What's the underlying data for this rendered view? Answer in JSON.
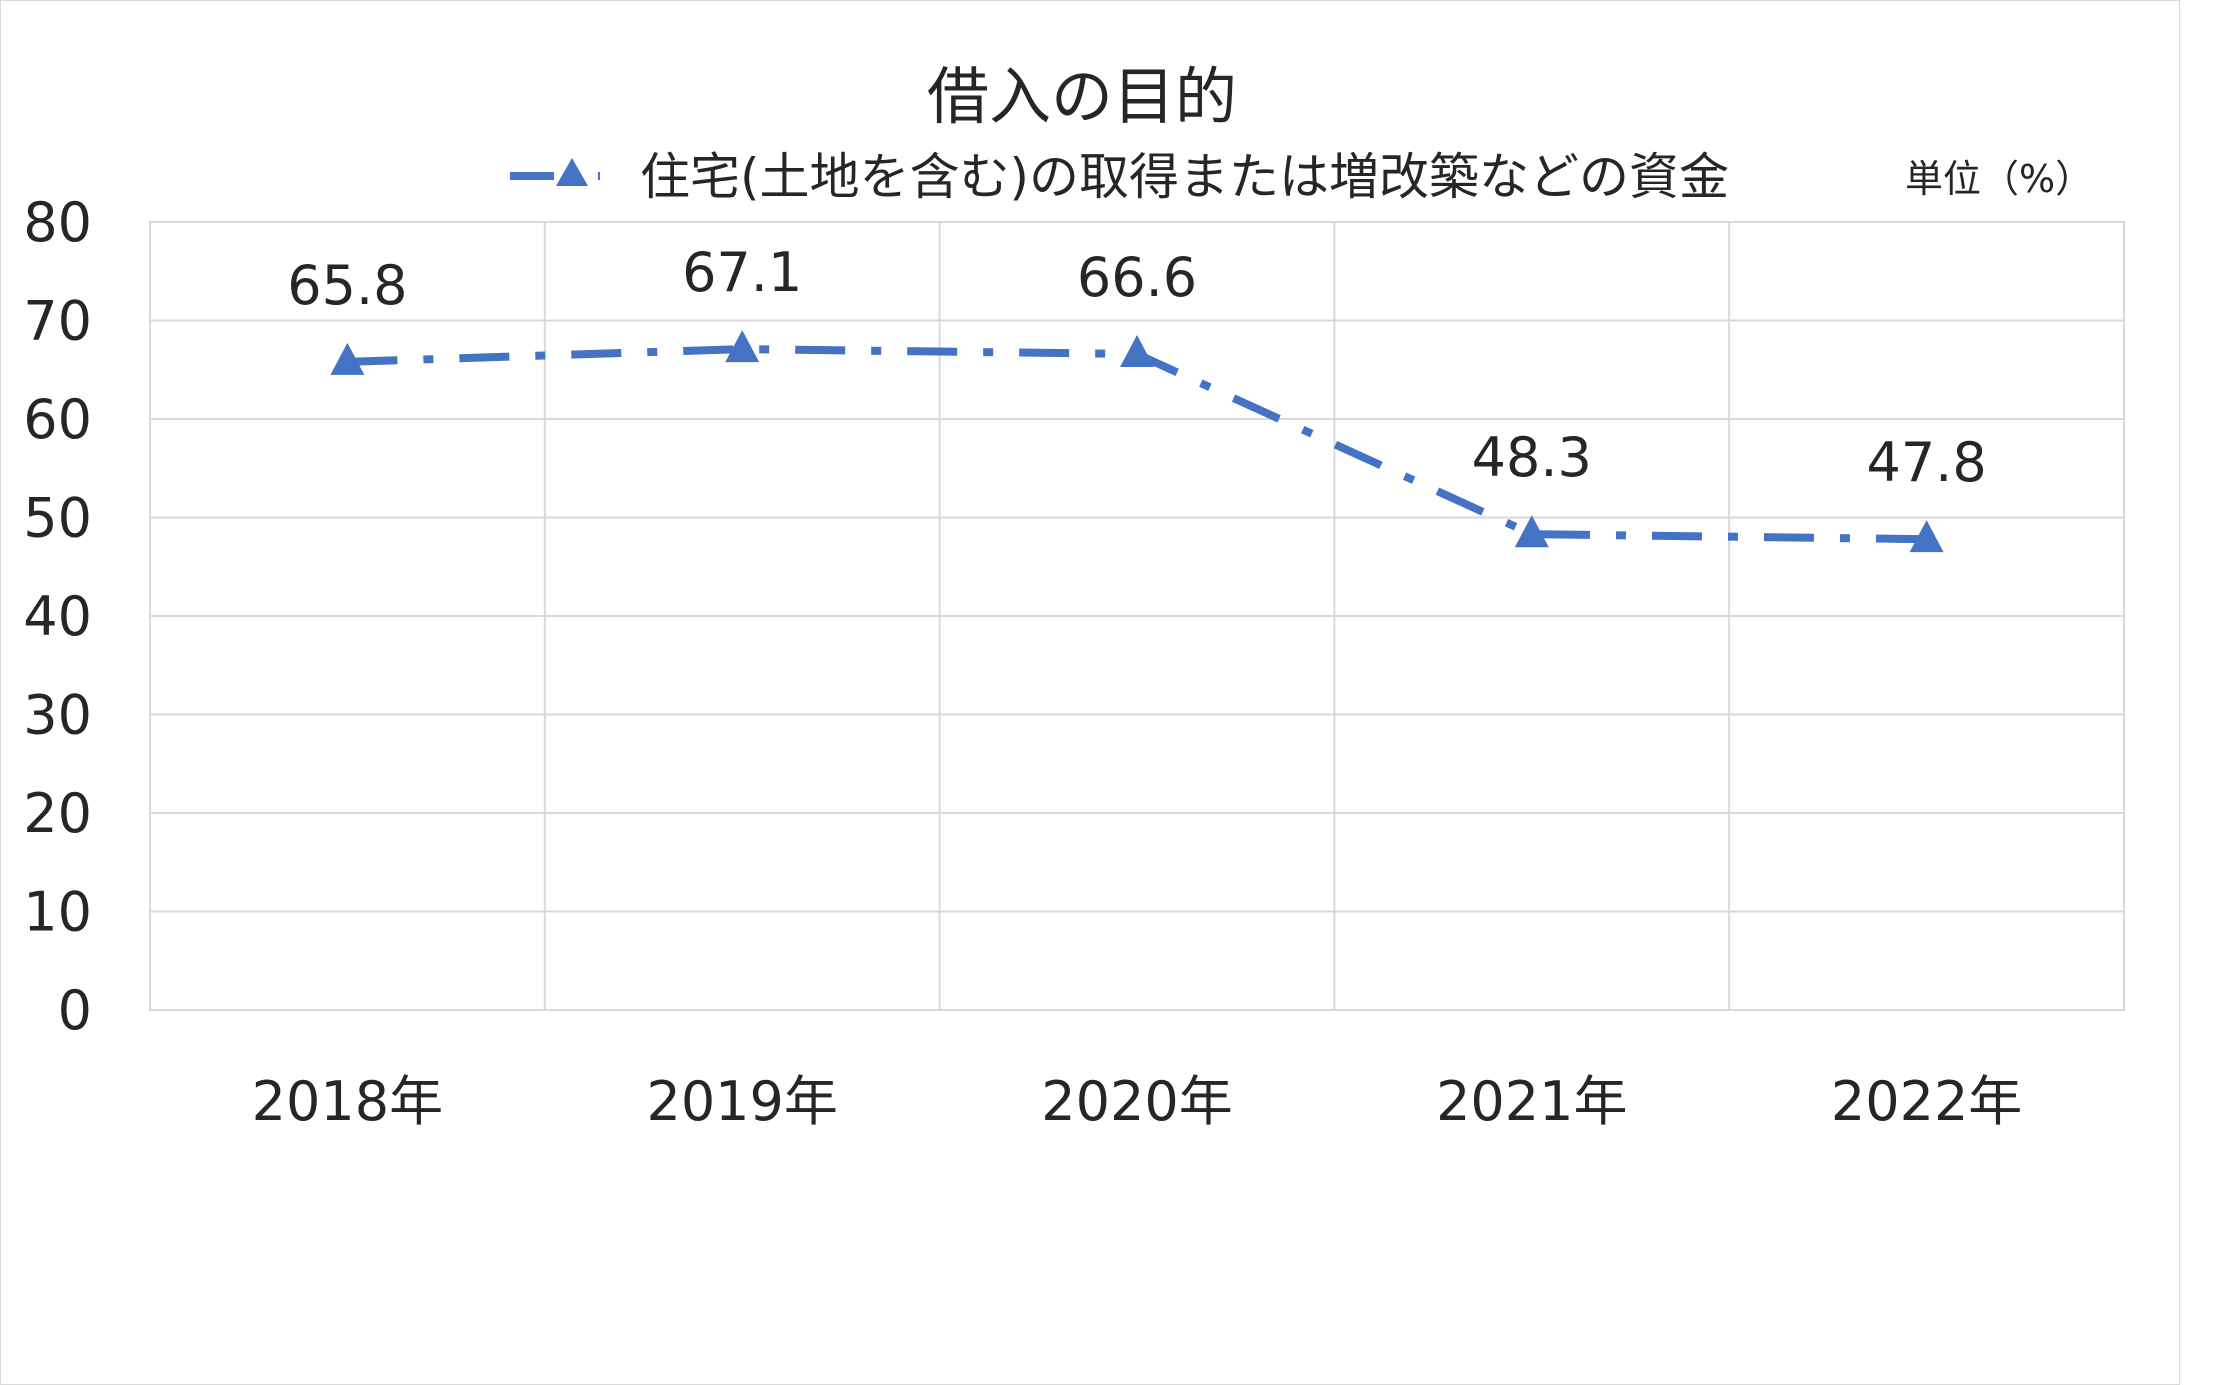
{
  "chart_data": {
    "type": "line",
    "title": "借入の目的",
    "unit_label": "単位（%）",
    "categories": [
      "2018年",
      "2019年",
      "2020年",
      "2021年",
      "2022年"
    ],
    "series": [
      {
        "name": "住宅(土地を含む)の取得または増改築などの資金",
        "values": [
          65.8,
          67.1,
          66.6,
          48.3,
          47.8
        ],
        "color": "#4472c4",
        "marker": "triangle",
        "line_style": "dash-dot"
      }
    ],
    "yticks": [
      "0",
      "10",
      "20",
      "30",
      "40",
      "50",
      "60",
      "70",
      "80"
    ],
    "ylim": [
      0,
      80
    ],
    "grid": true,
    "legend_position": "top"
  }
}
